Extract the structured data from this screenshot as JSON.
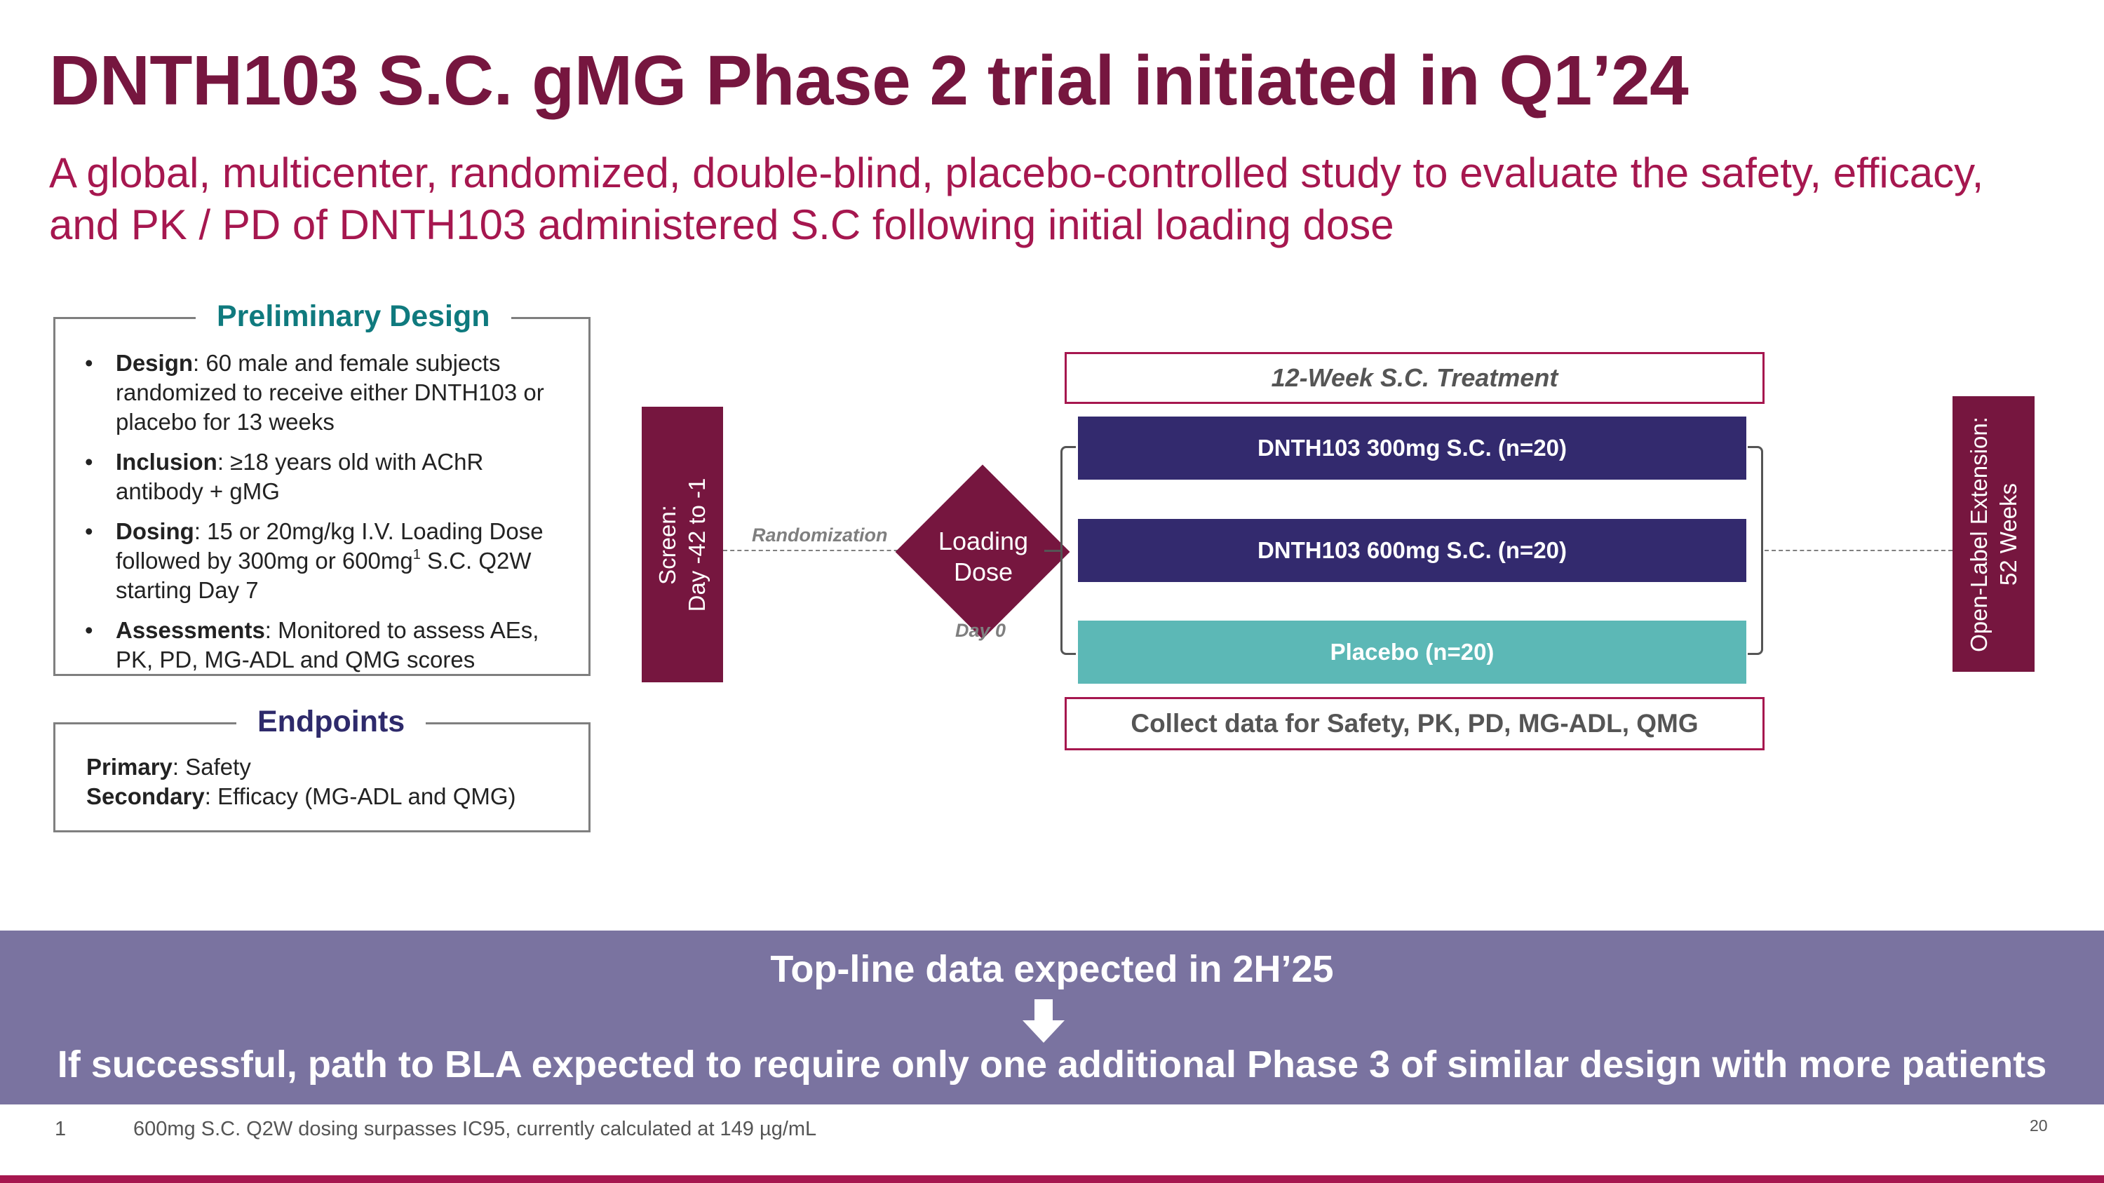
{
  "header": {
    "title": "DNTH103 S.C. gMG Phase 2 trial initiated in Q1’24",
    "subtitle": "A global, multicenter, randomized, double-blind, placebo-controlled study to evaluate the safety, efficacy, and PK / PD of DNTH103 administered S.C following initial loading dose"
  },
  "design": {
    "title": "Preliminary Design",
    "items": [
      {
        "label": "Design",
        "text": ": 60 male and female subjects randomized to receive either DNTH103 or placebo for 13 weeks"
      },
      {
        "label": "Inclusion",
        "text": ": ≥18 years old with AChR antibody + gMG"
      },
      {
        "label": "Dosing",
        "text_a": ": 15 or 20mg/kg I.V. Loading Dose followed by 300mg or 600mg",
        "sup": "1",
        "text_b": " S.C. Q2W starting Day 7"
      },
      {
        "label": "Assessments",
        "text": ": Monitored to assess AEs, PK, PD, MG-ADL and QMG scores"
      }
    ]
  },
  "endpoints": {
    "title": "Endpoints",
    "primary_label": "Primary",
    "primary_text": ": Safety",
    "secondary_label": "Secondary",
    "secondary_text": ": Efficacy (MG-ADL and QMG)"
  },
  "flow": {
    "screen_line1": "Screen:",
    "screen_line2": "Day -42 to -1",
    "randomization": "Randomization",
    "loading_line1": "Loading",
    "loading_line2": "Dose",
    "day0": "Day 0",
    "treatment_header": "12-Week S.C. Treatment",
    "arms": [
      {
        "label": "DNTH103 300mg S.C. (n=20)",
        "color": "#332a6e"
      },
      {
        "label": "DNTH103 600mg S.C. (n=20)",
        "color": "#332a6e"
      },
      {
        "label": "Placebo (n=20)",
        "color": "#5cb8b6"
      }
    ],
    "collect": "Collect data for Safety, PK, PD, MG-ADL, QMG",
    "ole_line1": "Open-Label Extension:",
    "ole_line2": "52 Weeks"
  },
  "banner": {
    "top": "Top-line data expected in 2H’25",
    "bottom": "If successful, path to BLA expected to require only one additional Phase 3 of similar design with more patients",
    "arrow_icon": "down-arrow-icon"
  },
  "footer": {
    "note_number": "1",
    "note_text": "600mg S.C. Q2W dosing surpasses IC95, currently calculated at 149 µg/mL",
    "page_number": "20"
  },
  "colors": {
    "brand_maroon": "#76163f",
    "brand_magenta": "#a6174f",
    "navy": "#332a6e",
    "teal": "#5cb8b6",
    "banner_purple": "#7a73a0"
  }
}
